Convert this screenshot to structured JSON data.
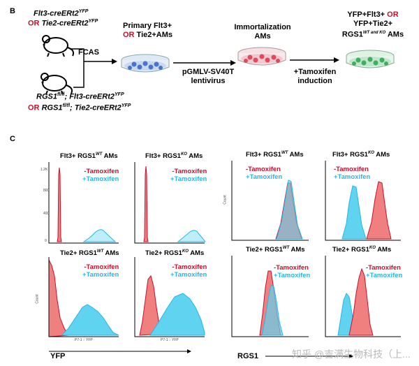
{
  "section_b": {
    "letter": "B",
    "mouse1_line1": "Flt3-creERt2",
    "mouse1_line1_sup": "YFP",
    "mouse1_line2_or": "OR",
    "mouse1_line2": "Tie2-creERt2",
    "mouse1_line2_sup": "YFP",
    "mouse2_line1_a": "RGS1",
    "mouse2_line1_sup": "fl/fl",
    "mouse2_line1_b": "; Flt3-creERt2",
    "mouse2_line1_sup2": "YFP",
    "mouse2_line2_or": "OR",
    "mouse2_line2_a": "RGS1",
    "mouse2_line2_sup": "fl/fl",
    "mouse2_line2_b": "; Tie2-creERt2",
    "mouse2_line2_sup2": "YFP",
    "step1": "FCAS",
    "dish1_line1": "Primary Flt3+",
    "dish1_or": "OR",
    "dish1_line2": " Tie2+AMs",
    "step2_line1": "pGMLV-SV40T",
    "step2_line2": "lentivirus",
    "dish2_line1": "Immortalization",
    "dish2_line2": "AMs",
    "step3_line1": "+Tamoxifen",
    "step3_line2": "induction",
    "dish3_line1": "YFP+Flt3+",
    "dish3_or": "OR",
    "dish3_line2": "YFP+Tie2+",
    "dish3_line3": "RGS1",
    "dish3_line3_sup": "WT and KO",
    "dish3_line3_end": " AMs"
  },
  "section_c": {
    "letter": "C",
    "left_xlabel": "YFP",
    "right_xlabel": "RGS1",
    "small_xaxis": "P7-1 :: YFP",
    "small_yaxis": "Count",
    "legend_minus": "-Tamoxifen",
    "legend_plus": "+Tamoxifen",
    "panels": [
      {
        "title_a": "Flt3+ RGS1",
        "title_sup": "WT",
        "title_b": " AMs"
      },
      {
        "title_a": "Flt3+ RGS1",
        "title_sup": "KO",
        "title_b": " AMs"
      },
      {
        "title_a": "Tie2+ RGS1",
        "title_sup": "WT",
        "title_b": " AMs"
      },
      {
        "title_a": "Tie2+ RGS1",
        "title_sup": "KO",
        "title_b": " AMs"
      },
      {
        "title_a": "Flt3+ RGS1",
        "title_sup": "WT",
        "title_b": " AMs"
      },
      {
        "title_a": "Flt3+ RGS1",
        "title_sup": "KO",
        "title_b": " AMs"
      },
      {
        "title_a": "Tie2+ RGS1",
        "title_sup": "WT",
        "title_b": " AMs"
      },
      {
        "title_a": "Tie2+ RGS1",
        "title_sup": "KO",
        "title_b": " AMs"
      }
    ],
    "tick_1_2k": "1.2K",
    "tick_800": "800",
    "tick_400": "400",
    "tick_0": "0"
  },
  "watermark": "知乎 @吉满生物科技（上...",
  "colors": {
    "red": "#c8102e",
    "cyan": "#29b6e6",
    "red_fill": "#f08080",
    "cyan_fill": "#5fd3f0"
  }
}
